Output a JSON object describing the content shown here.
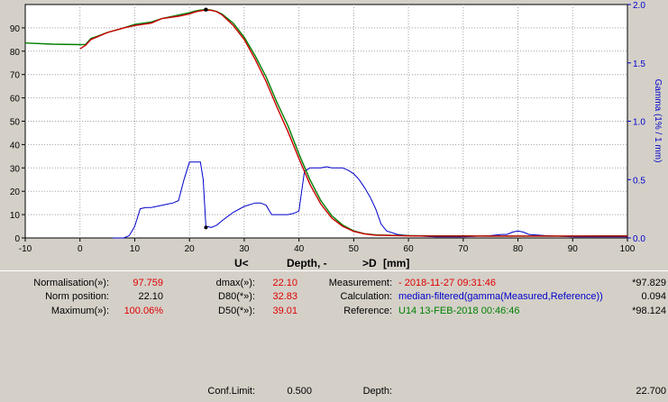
{
  "chart_data": {
    "type": "line",
    "xlim": [
      -10,
      100
    ],
    "ylim": [
      0,
      100
    ],
    "y2lim": [
      0,
      2.0
    ],
    "x_ticks": [
      -10,
      0,
      10,
      20,
      30,
      40,
      50,
      60,
      70,
      80,
      90,
      100
    ],
    "y_ticks": [
      0,
      10,
      20,
      30,
      40,
      50,
      60,
      70,
      80,
      90
    ],
    "y2_ticks": [
      "0.0",
      "0.5",
      "1.0",
      "1.5",
      "2.0"
    ],
    "xlabel_parts": [
      "U<",
      "Depth, -",
      ">D",
      "[mm]"
    ],
    "y2label": "Gamma (1% / 1 mm)",
    "grid": true,
    "colors": {
      "measured": "#cc0000",
      "reference": "#008000",
      "gamma": "#0000cc",
      "marker": "#000000"
    },
    "series": [
      {
        "key": "reference",
        "axis": "left",
        "x": [
          -10,
          -5,
          0,
          1,
          2,
          3,
          5,
          8,
          10,
          13,
          15,
          18,
          20,
          21,
          22,
          23,
          24,
          25,
          26,
          28,
          30,
          32,
          34,
          36,
          38,
          40,
          42,
          44,
          46,
          48,
          50,
          52,
          54,
          56,
          58,
          60,
          65,
          70,
          75,
          80,
          85,
          90,
          95,
          100
        ],
        "y": [
          83.5,
          83,
          82.8,
          82.9,
          85.5,
          86.2,
          88,
          90,
          91.5,
          92.5,
          94,
          95.5,
          96.5,
          97.2,
          97.6,
          97.8,
          97.6,
          97,
          95.8,
          92,
          86,
          78,
          69,
          58,
          48,
          36,
          25,
          16,
          9.5,
          5.5,
          3,
          1.8,
          1.3,
          1.2,
          1.1,
          1.0,
          0.9,
          0.9,
          0.8,
          0.8,
          0.8,
          0.8,
          0.9,
          0.9
        ]
      },
      {
        "key": "measured",
        "axis": "left",
        "x": [
          0,
          1,
          2,
          3,
          5,
          8,
          10,
          13,
          15,
          18,
          20,
          21,
          22,
          23,
          24,
          25,
          26,
          28,
          30,
          32,
          34,
          36,
          38,
          40,
          42,
          44,
          46,
          48,
          50,
          52,
          54,
          56,
          58,
          60,
          65,
          70,
          75,
          80,
          85,
          90,
          95,
          100
        ],
        "y": [
          81,
          82.5,
          85,
          86,
          88,
          90,
          91,
          92,
          94,
          95,
          96,
          96.8,
          97.3,
          97.6,
          97.5,
          96.9,
          95.5,
          91,
          85,
          76.5,
          67,
          56,
          45.5,
          34,
          23,
          14.5,
          8.5,
          5,
          2.8,
          1.7,
          1.2,
          1.1,
          1.0,
          0.9,
          0.8,
          0.8,
          0.8,
          0.8,
          0.8,
          0.8,
          0.8,
          0.8
        ]
      },
      {
        "key": "gamma",
        "axis": "right",
        "x": [
          6,
          8,
          9,
          10,
          11,
          12,
          13,
          14,
          15,
          16,
          17,
          18,
          19,
          20,
          21,
          22,
          22.5,
          23,
          24,
          25,
          26,
          28,
          30,
          32,
          33,
          34,
          35,
          36,
          37,
          38,
          39,
          40,
          41,
          42,
          43,
          44,
          45,
          46,
          47,
          48,
          49,
          50,
          51,
          52,
          53,
          54,
          55,
          56,
          58,
          60,
          65,
          70,
          75,
          77,
          78,
          79,
          80,
          81,
          82,
          85,
          90,
          95,
          100
        ],
        "y": [
          0,
          0,
          0.02,
          0.1,
          0.25,
          0.26,
          0.26,
          0.27,
          0.28,
          0.29,
          0.3,
          0.32,
          0.5,
          0.65,
          0.65,
          0.65,
          0.5,
          0.1,
          0.09,
          0.11,
          0.15,
          0.22,
          0.27,
          0.3,
          0.3,
          0.28,
          0.2,
          0.2,
          0.2,
          0.2,
          0.21,
          0.23,
          0.57,
          0.6,
          0.6,
          0.6,
          0.61,
          0.6,
          0.6,
          0.6,
          0.58,
          0.55,
          0.5,
          0.43,
          0.35,
          0.25,
          0.12,
          0.06,
          0.03,
          0.02,
          0.01,
          0.01,
          0.02,
          0.03,
          0.03,
          0.05,
          0.06,
          0.05,
          0.03,
          0.02,
          0.01,
          0.01,
          0.01
        ]
      }
    ],
    "marker_x": 23.0,
    "marker_top": 97.8,
    "marker_bottom": 4.5
  },
  "info": {
    "col1": [
      {
        "label": "Normalisation(»):",
        "value": "97.759",
        "value_class": "red"
      },
      {
        "label": "Norm position:",
        "value": "22.10",
        "value_class": ""
      },
      {
        "label": "Maximum(»):",
        "value": "100.06%",
        "value_class": "red"
      }
    ],
    "col2": [
      {
        "label": "dmax(»):",
        "value": "22.10",
        "value_class": "red"
      },
      {
        "label": "D80(*»):",
        "value": "32.83",
        "value_class": "red"
      },
      {
        "label": "D50(*»):",
        "value": "39.01",
        "value_class": "red"
      }
    ],
    "col3": [
      {
        "label": "Measurement:",
        "value": "- 2018-11-27 09:31:46",
        "value_class": "red",
        "extra": "*97.829"
      },
      {
        "label": "Calculation:",
        "value": "median-filtered(gamma(Measured,Reference))",
        "value_class": "blue",
        "extra": "0.094"
      },
      {
        "label": "Reference:",
        "value": "U14 13-FEB-2018  00:46:46",
        "value_class": "green",
        "extra": "*98.124"
      }
    ],
    "bottom": {
      "conf_label": "Conf.Limit:",
      "conf_value": "0.500",
      "depth_label": "Depth:",
      "depth_value": "22.700"
    }
  }
}
